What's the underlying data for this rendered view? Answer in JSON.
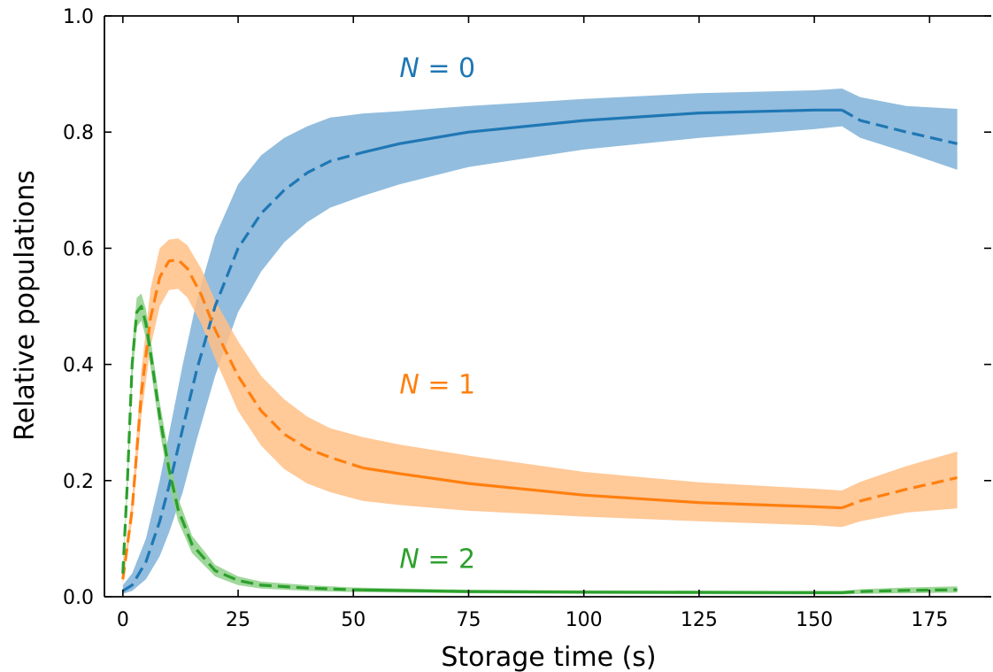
{
  "chart_data": {
    "type": "line",
    "xlabel": "Storage time (s)",
    "ylabel": "Relative populations",
    "xlim": [
      -4,
      183
    ],
    "ylim": [
      0.0,
      1.0
    ],
    "xticks": [
      0,
      25,
      50,
      75,
      100,
      125,
      150,
      175
    ],
    "yticks": [
      0.0,
      0.2,
      0.4,
      0.6,
      0.8,
      1.0
    ],
    "xtick_labels": [
      "0",
      "25",
      "50",
      "75",
      "100",
      "125",
      "150",
      "175"
    ],
    "ytick_labels": [
      "0.0",
      "0.2",
      "0.4",
      "0.6",
      "0.8",
      "1.0"
    ],
    "grid": false,
    "series": [
      {
        "name": "N = 0",
        "label_x": 60,
        "label_y": 0.91,
        "color": "#1f77b4",
        "band_color": "#7fb1d8",
        "x": [
          0,
          2,
          5,
          8,
          10,
          13,
          16,
          20,
          25,
          30,
          35,
          40,
          45,
          52,
          60,
          75,
          100,
          125,
          150,
          156,
          160,
          170,
          181
        ],
        "y": [
          0.01,
          0.02,
          0.06,
          0.13,
          0.19,
          0.29,
          0.39,
          0.5,
          0.6,
          0.66,
          0.7,
          0.73,
          0.75,
          0.765,
          0.78,
          0.8,
          0.82,
          0.833,
          0.838,
          0.838,
          0.82,
          0.8,
          0.78
        ],
        "lower": [
          0.005,
          0.01,
          0.03,
          0.07,
          0.11,
          0.18,
          0.27,
          0.38,
          0.49,
          0.56,
          0.61,
          0.645,
          0.67,
          0.69,
          0.71,
          0.74,
          0.77,
          0.79,
          0.805,
          0.81,
          0.79,
          0.765,
          0.735
        ],
        "upper": [
          0.02,
          0.04,
          0.1,
          0.2,
          0.28,
          0.4,
          0.51,
          0.62,
          0.71,
          0.76,
          0.79,
          0.81,
          0.825,
          0.832,
          0.836,
          0.845,
          0.857,
          0.867,
          0.872,
          0.875,
          0.86,
          0.845,
          0.84
        ],
        "solid_range": [
          52,
          156
        ]
      },
      {
        "name": "N = 1",
        "label_x": 60,
        "label_y": 0.365,
        "color": "#ff7f0e",
        "band_color": "#ffbf86",
        "x": [
          0,
          2,
          4,
          6,
          8,
          10,
          12,
          14,
          17,
          20,
          25,
          30,
          35,
          40,
          45,
          52,
          60,
          75,
          100,
          125,
          150,
          156,
          160,
          170,
          181
        ],
        "y": [
          0.03,
          0.15,
          0.35,
          0.48,
          0.55,
          0.578,
          0.58,
          0.565,
          0.52,
          0.46,
          0.38,
          0.32,
          0.28,
          0.255,
          0.24,
          0.222,
          0.212,
          0.195,
          0.175,
          0.162,
          0.155,
          0.153,
          0.165,
          0.185,
          0.205
        ],
        "lower": [
          0.02,
          0.13,
          0.31,
          0.43,
          0.5,
          0.528,
          0.53,
          0.515,
          0.47,
          0.41,
          0.32,
          0.26,
          0.22,
          0.195,
          0.18,
          0.165,
          0.158,
          0.148,
          0.138,
          0.13,
          0.123,
          0.12,
          0.13,
          0.145,
          0.152
        ],
        "upper": [
          0.04,
          0.17,
          0.39,
          0.53,
          0.6,
          0.615,
          0.617,
          0.605,
          0.565,
          0.51,
          0.44,
          0.38,
          0.34,
          0.31,
          0.29,
          0.275,
          0.262,
          0.243,
          0.215,
          0.197,
          0.186,
          0.183,
          0.198,
          0.225,
          0.25
        ],
        "solid_range": [
          52,
          156
        ]
      },
      {
        "name": "N = 2",
        "label_x": 60,
        "label_y": 0.065,
        "color": "#2ca02c",
        "band_color": "#8fd08a",
        "x": [
          0,
          1,
          2,
          3,
          4,
          5,
          6,
          8,
          10,
          12,
          15,
          20,
          25,
          30,
          40,
          50,
          75,
          100,
          150,
          156,
          160,
          170,
          181
        ],
        "y": [
          0.04,
          0.2,
          0.4,
          0.49,
          0.5,
          0.47,
          0.42,
          0.31,
          0.22,
          0.15,
          0.09,
          0.045,
          0.028,
          0.02,
          0.015,
          0.012,
          0.009,
          0.008,
          0.007,
          0.007,
          0.009,
          0.011,
          0.012
        ],
        "lower": [
          0.035,
          0.18,
          0.37,
          0.465,
          0.475,
          0.445,
          0.395,
          0.285,
          0.195,
          0.13,
          0.075,
          0.035,
          0.02,
          0.014,
          0.01,
          0.008,
          0.006,
          0.005,
          0.004,
          0.004,
          0.005,
          0.006,
          0.007
        ],
        "upper": [
          0.045,
          0.22,
          0.43,
          0.515,
          0.522,
          0.495,
          0.445,
          0.335,
          0.245,
          0.17,
          0.105,
          0.055,
          0.035,
          0.026,
          0.02,
          0.016,
          0.012,
          0.011,
          0.01,
          0.01,
          0.013,
          0.016,
          0.018
        ],
        "solid_range": [
          52,
          156
        ]
      }
    ]
  }
}
